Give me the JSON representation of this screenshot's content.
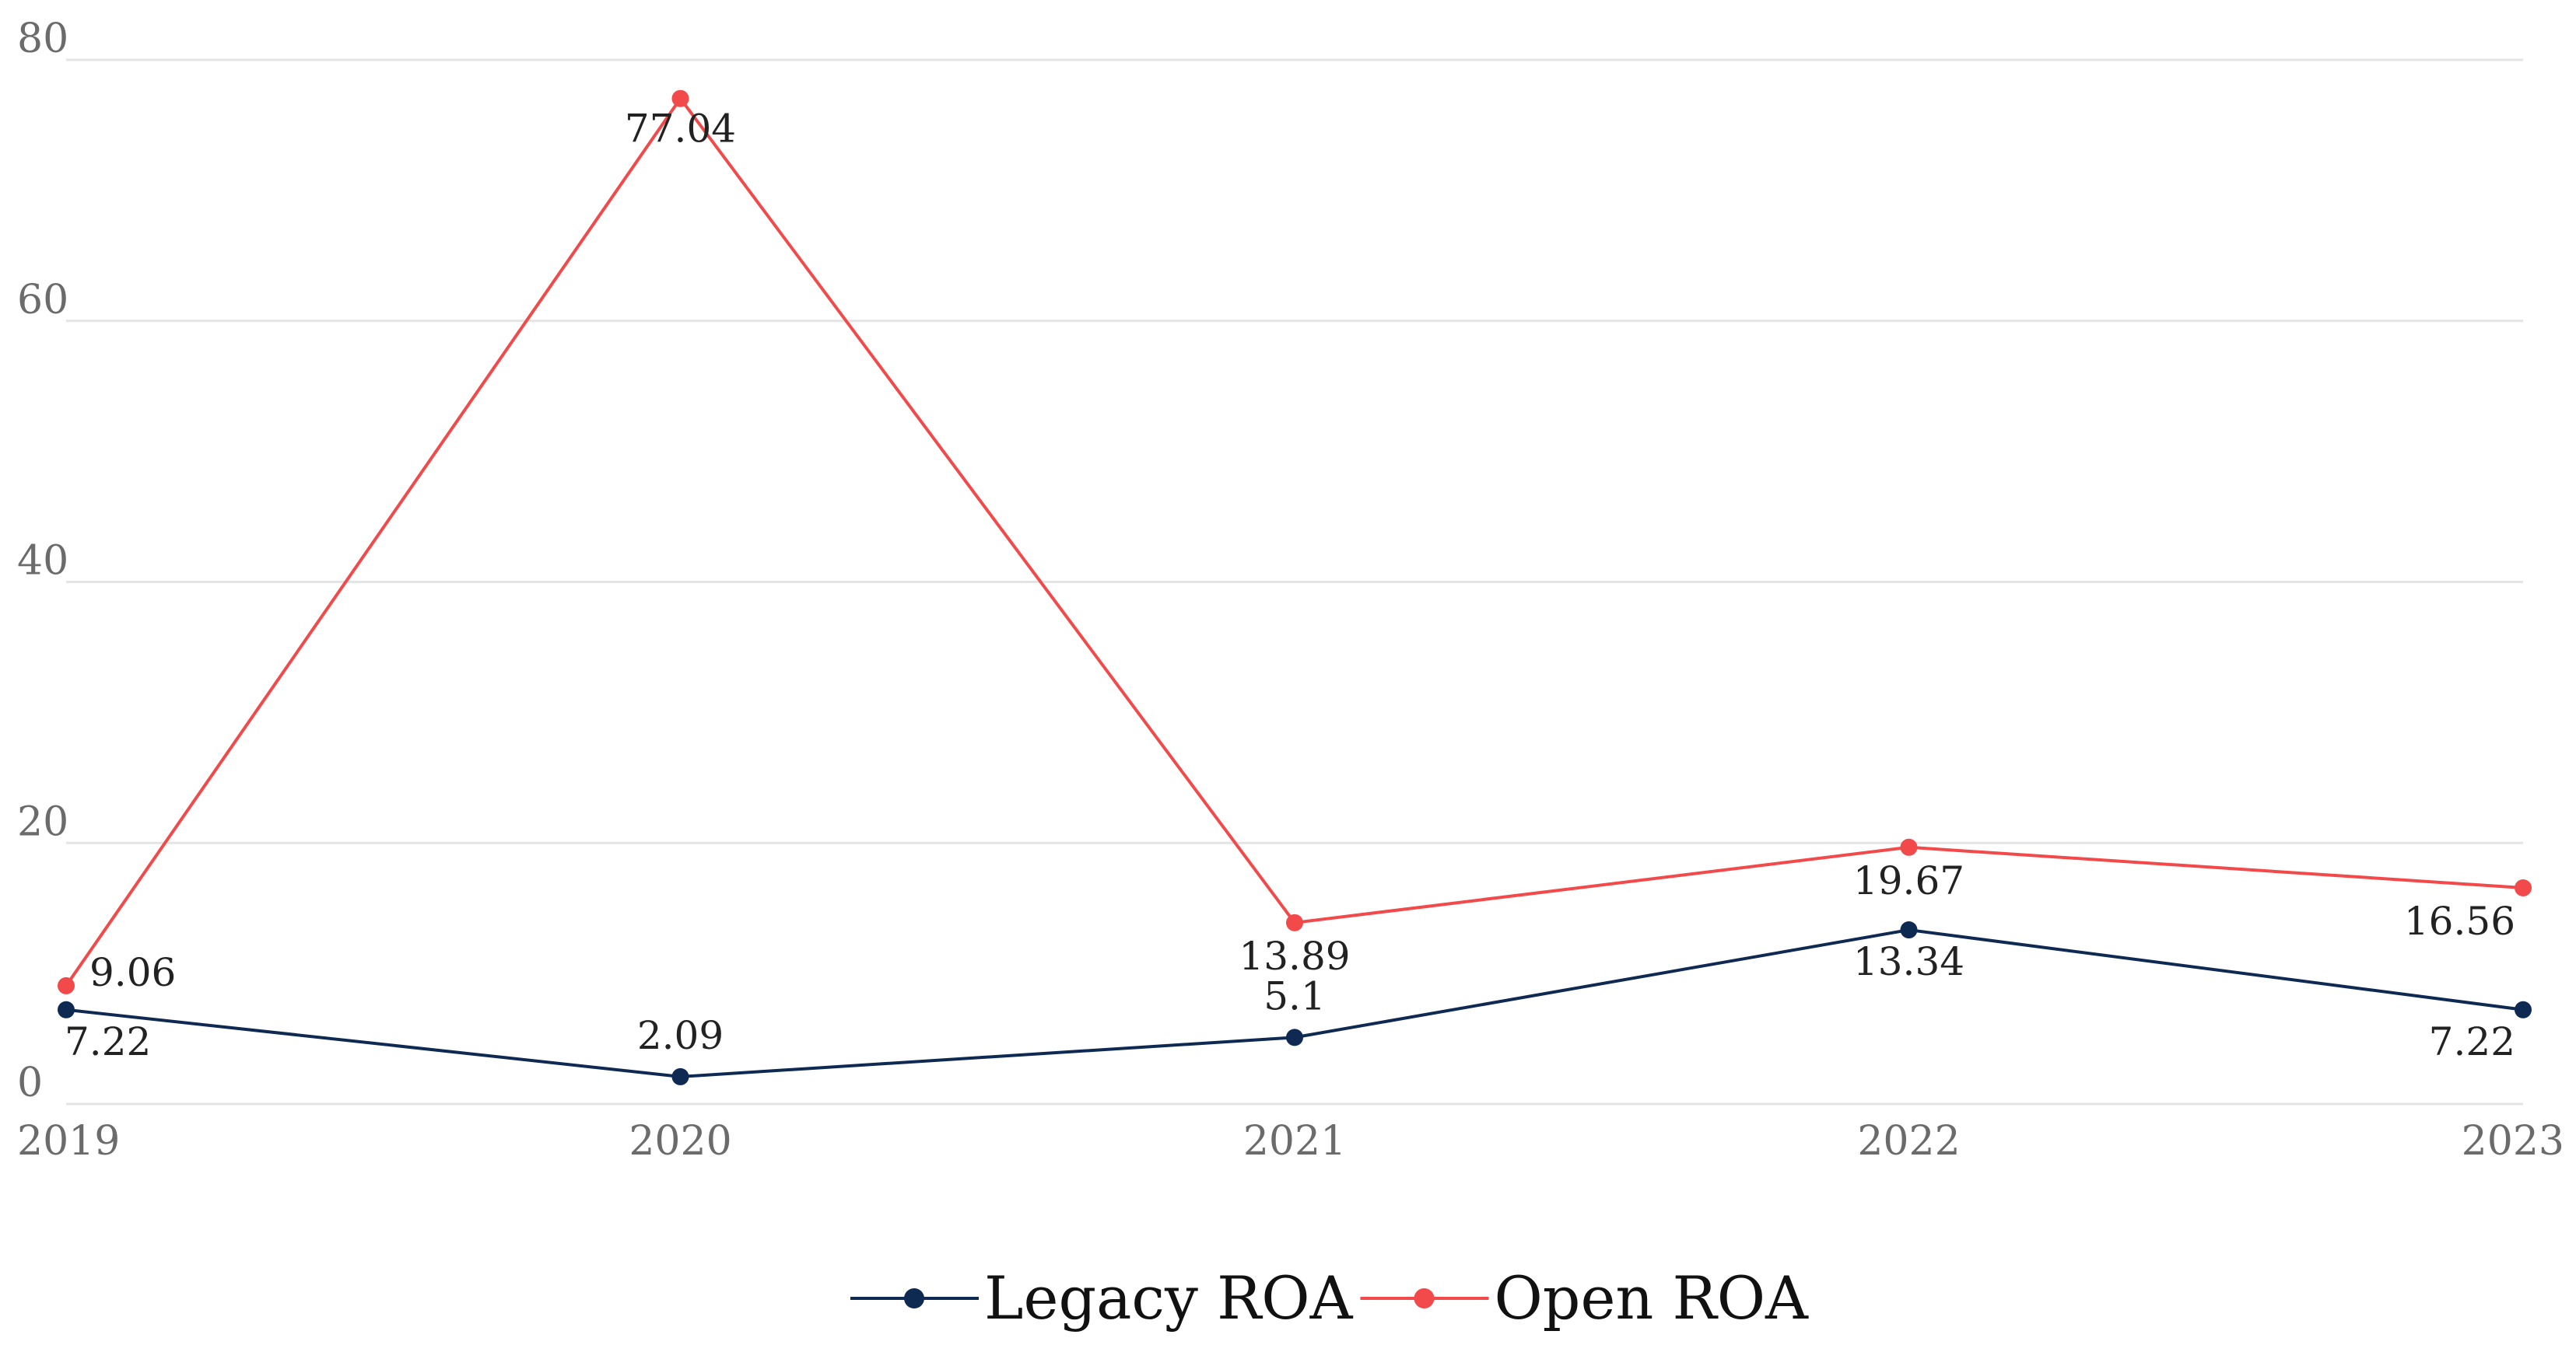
{
  "chart_data": {
    "type": "line",
    "title": "",
    "xlabel": "",
    "ylabel": "",
    "categories": [
      "2019",
      "2020",
      "2021",
      "2022",
      "2023"
    ],
    "ylim": [
      0,
      80
    ],
    "yticks": [
      0,
      20,
      40,
      60,
      80
    ],
    "grid": true,
    "legend_position": "bottom-center",
    "series": [
      {
        "name": "Legacy ROA",
        "color": "#0f2a52",
        "values": [
          7.22,
          2.09,
          5.1,
          13.34,
          7.22
        ],
        "labels": [
          "7.22",
          "2.09",
          "5.1",
          "13.34",
          "7.22"
        ]
      },
      {
        "name": "Open ROA",
        "color": "#f24a4a",
        "values": [
          9.06,
          77.04,
          13.89,
          19.67,
          16.56
        ],
        "labels": [
          "9.06",
          "77.04",
          "13.89",
          "19.67",
          "16.56"
        ]
      }
    ]
  }
}
